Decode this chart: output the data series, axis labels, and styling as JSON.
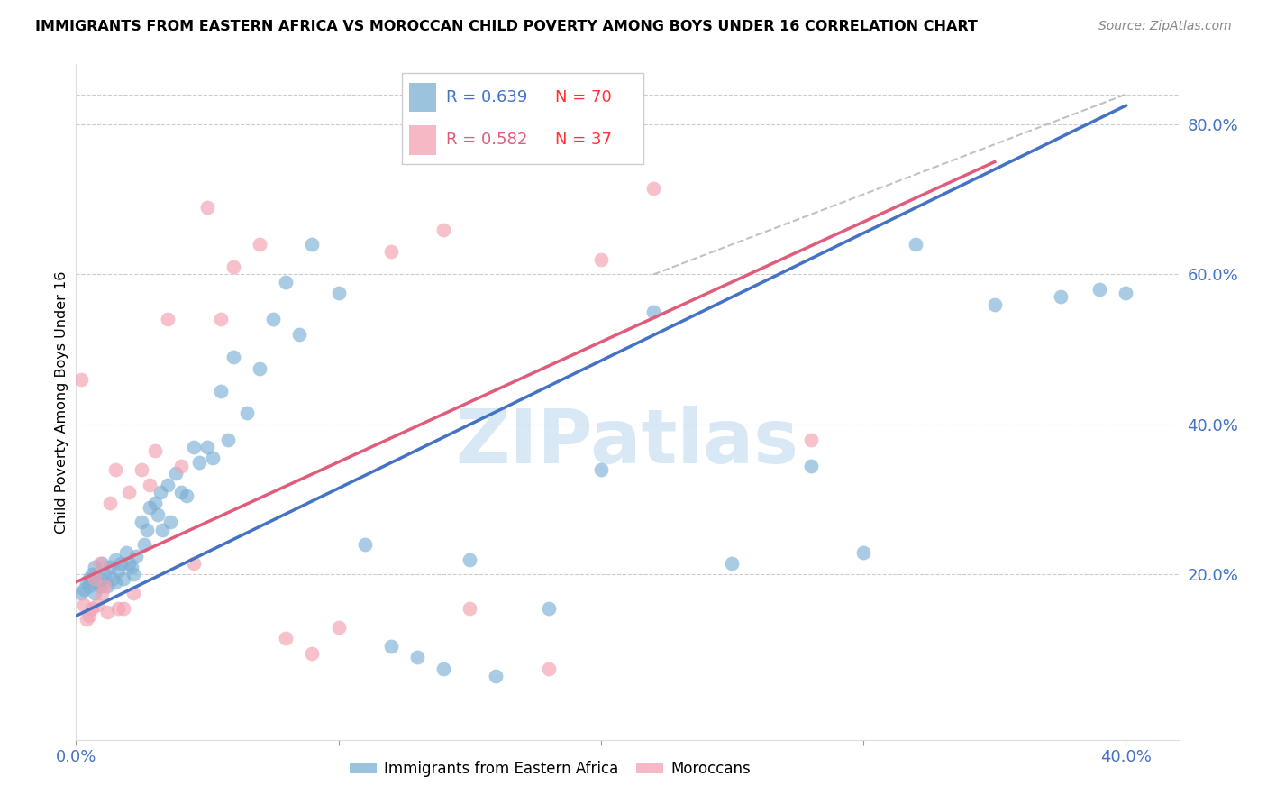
{
  "title": "IMMIGRANTS FROM EASTERN AFRICA VS MOROCCAN CHILD POVERTY AMONG BOYS UNDER 16 CORRELATION CHART",
  "source": "Source: ZipAtlas.com",
  "ylabel": "Child Poverty Among Boys Under 16",
  "xlim": [
    0.0,
    0.42
  ],
  "ylim": [
    -0.02,
    0.88
  ],
  "x_ticks": [
    0.0,
    0.1,
    0.2,
    0.3,
    0.4
  ],
  "x_tick_labels": [
    "0.0%",
    "",
    "",
    "",
    "40.0%"
  ],
  "y_ticks_right": [
    0.2,
    0.4,
    0.6,
    0.8
  ],
  "y_tick_labels_right": [
    "20.0%",
    "40.0%",
    "60.0%",
    "80.0%"
  ],
  "blue_color": "#7BAFD4",
  "pink_color": "#F4A0B0",
  "blue_line_color": "#4472C4",
  "pink_line_color": "#E05C7A",
  "grey_line_color": "#BBBBBB",
  "watermark": "ZIPatlas",
  "watermark_color": "#D8E8F5",
  "legend_R_blue": "R = 0.639",
  "legend_N_blue": "N = 70",
  "legend_R_pink": "R = 0.582",
  "legend_N_pink": "N = 37",
  "blue_line_x": [
    0.0,
    0.4
  ],
  "blue_line_y": [
    0.145,
    0.825
  ],
  "pink_line_x": [
    0.0,
    0.35
  ],
  "pink_line_y": [
    0.19,
    0.75
  ],
  "grey_line_x": [
    0.22,
    0.4
  ],
  "grey_line_y": [
    0.6,
    0.84
  ],
  "blue_scatter_x": [
    0.002,
    0.003,
    0.004,
    0.005,
    0.005,
    0.006,
    0.007,
    0.007,
    0.008,
    0.009,
    0.01,
    0.01,
    0.011,
    0.012,
    0.013,
    0.014,
    0.015,
    0.015,
    0.016,
    0.017,
    0.018,
    0.019,
    0.02,
    0.021,
    0.022,
    0.023,
    0.025,
    0.026,
    0.027,
    0.028,
    0.03,
    0.031,
    0.032,
    0.033,
    0.035,
    0.036,
    0.038,
    0.04,
    0.042,
    0.045,
    0.047,
    0.05,
    0.052,
    0.055,
    0.058,
    0.06,
    0.065,
    0.07,
    0.075,
    0.08,
    0.085,
    0.09,
    0.1,
    0.11,
    0.12,
    0.13,
    0.14,
    0.15,
    0.16,
    0.18,
    0.2,
    0.22,
    0.25,
    0.28,
    0.3,
    0.32,
    0.35,
    0.375,
    0.39,
    0.4
  ],
  "blue_scatter_y": [
    0.175,
    0.18,
    0.19,
    0.185,
    0.195,
    0.2,
    0.175,
    0.21,
    0.19,
    0.185,
    0.195,
    0.215,
    0.2,
    0.185,
    0.21,
    0.195,
    0.19,
    0.22,
    0.205,
    0.215,
    0.195,
    0.23,
    0.215,
    0.21,
    0.2,
    0.225,
    0.27,
    0.24,
    0.26,
    0.29,
    0.295,
    0.28,
    0.31,
    0.26,
    0.32,
    0.27,
    0.335,
    0.31,
    0.305,
    0.37,
    0.35,
    0.37,
    0.355,
    0.445,
    0.38,
    0.49,
    0.415,
    0.475,
    0.54,
    0.59,
    0.52,
    0.64,
    0.575,
    0.24,
    0.105,
    0.09,
    0.075,
    0.22,
    0.065,
    0.155,
    0.34,
    0.55,
    0.215,
    0.345,
    0.23,
    0.64,
    0.56,
    0.57,
    0.58,
    0.575
  ],
  "pink_scatter_x": [
    0.002,
    0.003,
    0.004,
    0.005,
    0.006,
    0.007,
    0.008,
    0.009,
    0.01,
    0.011,
    0.012,
    0.013,
    0.015,
    0.016,
    0.018,
    0.02,
    0.022,
    0.025,
    0.028,
    0.03,
    0.035,
    0.04,
    0.045,
    0.05,
    0.055,
    0.06,
    0.07,
    0.08,
    0.09,
    0.1,
    0.12,
    0.14,
    0.15,
    0.18,
    0.2,
    0.22,
    0.28
  ],
  "pink_scatter_y": [
    0.46,
    0.16,
    0.14,
    0.145,
    0.155,
    0.195,
    0.16,
    0.215,
    0.175,
    0.185,
    0.15,
    0.295,
    0.34,
    0.155,
    0.155,
    0.31,
    0.175,
    0.34,
    0.32,
    0.365,
    0.54,
    0.345,
    0.215,
    0.69,
    0.54,
    0.61,
    0.64,
    0.115,
    0.095,
    0.13,
    0.63,
    0.66,
    0.155,
    0.075,
    0.62,
    0.715,
    0.38
  ]
}
